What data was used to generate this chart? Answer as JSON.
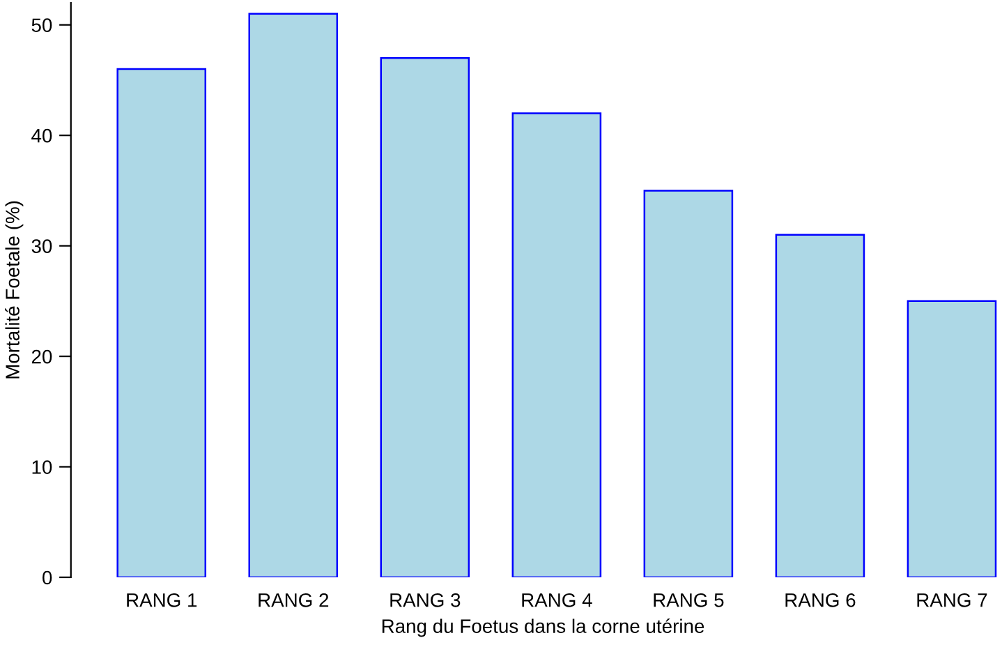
{
  "chart_data": {
    "type": "bar",
    "xlabel": "Rang du Foetus dans la corne utérine",
    "ylabel": "Mortalité Foetale (%)",
    "categories": [
      "RANG 1",
      "RANG 2",
      "RANG 3",
      "RANG 4",
      "RANG 5",
      "RANG 6",
      "RANG 7"
    ],
    "values": [
      46,
      51,
      47,
      42,
      35,
      31,
      25
    ],
    "color": "#add8e6",
    "ylim": [
      0,
      52
    ],
    "yticks": [
      0,
      10,
      20,
      30,
      40,
      50
    ],
    "grid": false
  }
}
